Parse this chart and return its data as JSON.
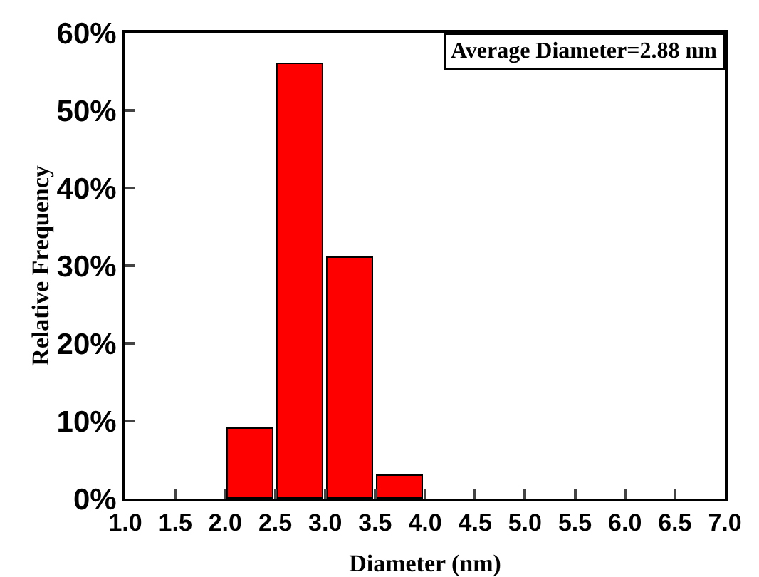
{
  "chart_data": {
    "type": "histogram",
    "xlabel": "Diameter (nm)",
    "ylabel": "Relative Frequency",
    "annotations": [
      "Average Diameter=2.88 nm"
    ],
    "bins": [
      2.0,
      2.5,
      3.0,
      3.5,
      4.0
    ],
    "values": [
      9,
      56,
      31,
      3
    ],
    "color": "#ff0000",
    "xlim": [
      1.0,
      7.0
    ],
    "xticks": [
      {
        "value": 1,
        "label": "1.0"
      },
      {
        "value": 1.5,
        "label": "1.5"
      },
      {
        "value": 2,
        "label": "2.0"
      },
      {
        "value": 2.5,
        "label": "2.5"
      },
      {
        "value": 3,
        "label": "3.0"
      },
      {
        "value": 3.5,
        "label": "3.5"
      },
      {
        "value": 4,
        "label": "4.0"
      },
      {
        "value": 4.5,
        "label": "4.5"
      },
      {
        "value": 5,
        "label": "5.0"
      },
      {
        "value": 5.5,
        "label": "5.5"
      },
      {
        "value": 6,
        "label": "6.0"
      },
      {
        "value": 6.5,
        "label": "6.5"
      },
      {
        "value": 7,
        "label": "7.0"
      }
    ],
    "ylim": [
      0,
      60
    ],
    "yticks": [
      {
        "value": 0,
        "label": "0%"
      },
      {
        "value": 10,
        "label": "10%"
      },
      {
        "value": 20,
        "label": "20%"
      },
      {
        "value": 30,
        "label": "30%"
      },
      {
        "value": 40,
        "label": "40%"
      },
      {
        "value": 50,
        "label": "50%"
      },
      {
        "value": 60,
        "label": "60%"
      }
    ],
    "grid": false
  }
}
